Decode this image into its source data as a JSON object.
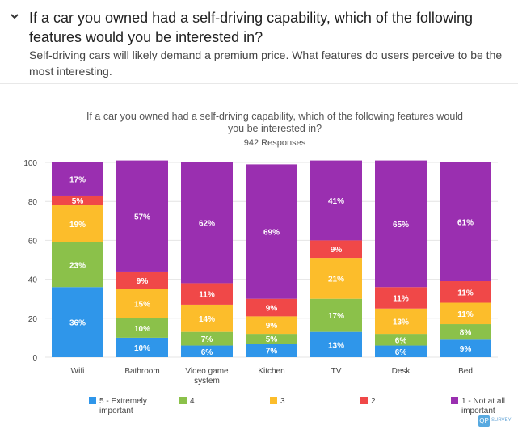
{
  "question": {
    "title": "If a car you owned had a self-driving capability, which of the following features would you be interested in?",
    "description": "Self-driving cars will likely demand a premium price. What features do users perceive to be the most interesting."
  },
  "corner_logo": {
    "icon": "QP",
    "label": "SURVEY"
  },
  "colors": {
    "extremely": "#2f96ea",
    "four": "#8bc14a",
    "three": "#fcbd2b",
    "two": "#f04848",
    "not_at_all": "#9a2fb0"
  },
  "chart_data": {
    "type": "bar",
    "stacked": true,
    "title": "If a car you owned had a self-driving capability, which of the following features would you be interested in?",
    "subtitle": "942 Responses",
    "xlabel": "",
    "ylabel": "",
    "ylim": [
      0,
      100
    ],
    "yticks": [
      "0",
      "20",
      "40",
      "60",
      "80",
      "100"
    ],
    "grid": true,
    "legend_position": "bottom",
    "categories": [
      "Wifi",
      "Bathroom",
      "Video game system",
      "Kitchen",
      "TV",
      "Desk",
      "Bed"
    ],
    "series": [
      {
        "name": "5 - Extremely important",
        "color": "#2f96ea",
        "values": [
          36,
          10,
          6,
          7,
          13,
          6,
          9
        ]
      },
      {
        "name": "4",
        "color": "#8bc14a",
        "values": [
          23,
          10,
          7,
          5,
          17,
          6,
          8
        ]
      },
      {
        "name": "3",
        "color": "#fcbd2b",
        "values": [
          19,
          15,
          14,
          9,
          21,
          13,
          11
        ]
      },
      {
        "name": "2",
        "color": "#f04848",
        "values": [
          5,
          9,
          11,
          9,
          9,
          11,
          11
        ]
      },
      {
        "name": "1 - Not at all important",
        "color": "#9a2fb0",
        "values": [
          17,
          57,
          62,
          69,
          41,
          65,
          61
        ]
      }
    ]
  }
}
